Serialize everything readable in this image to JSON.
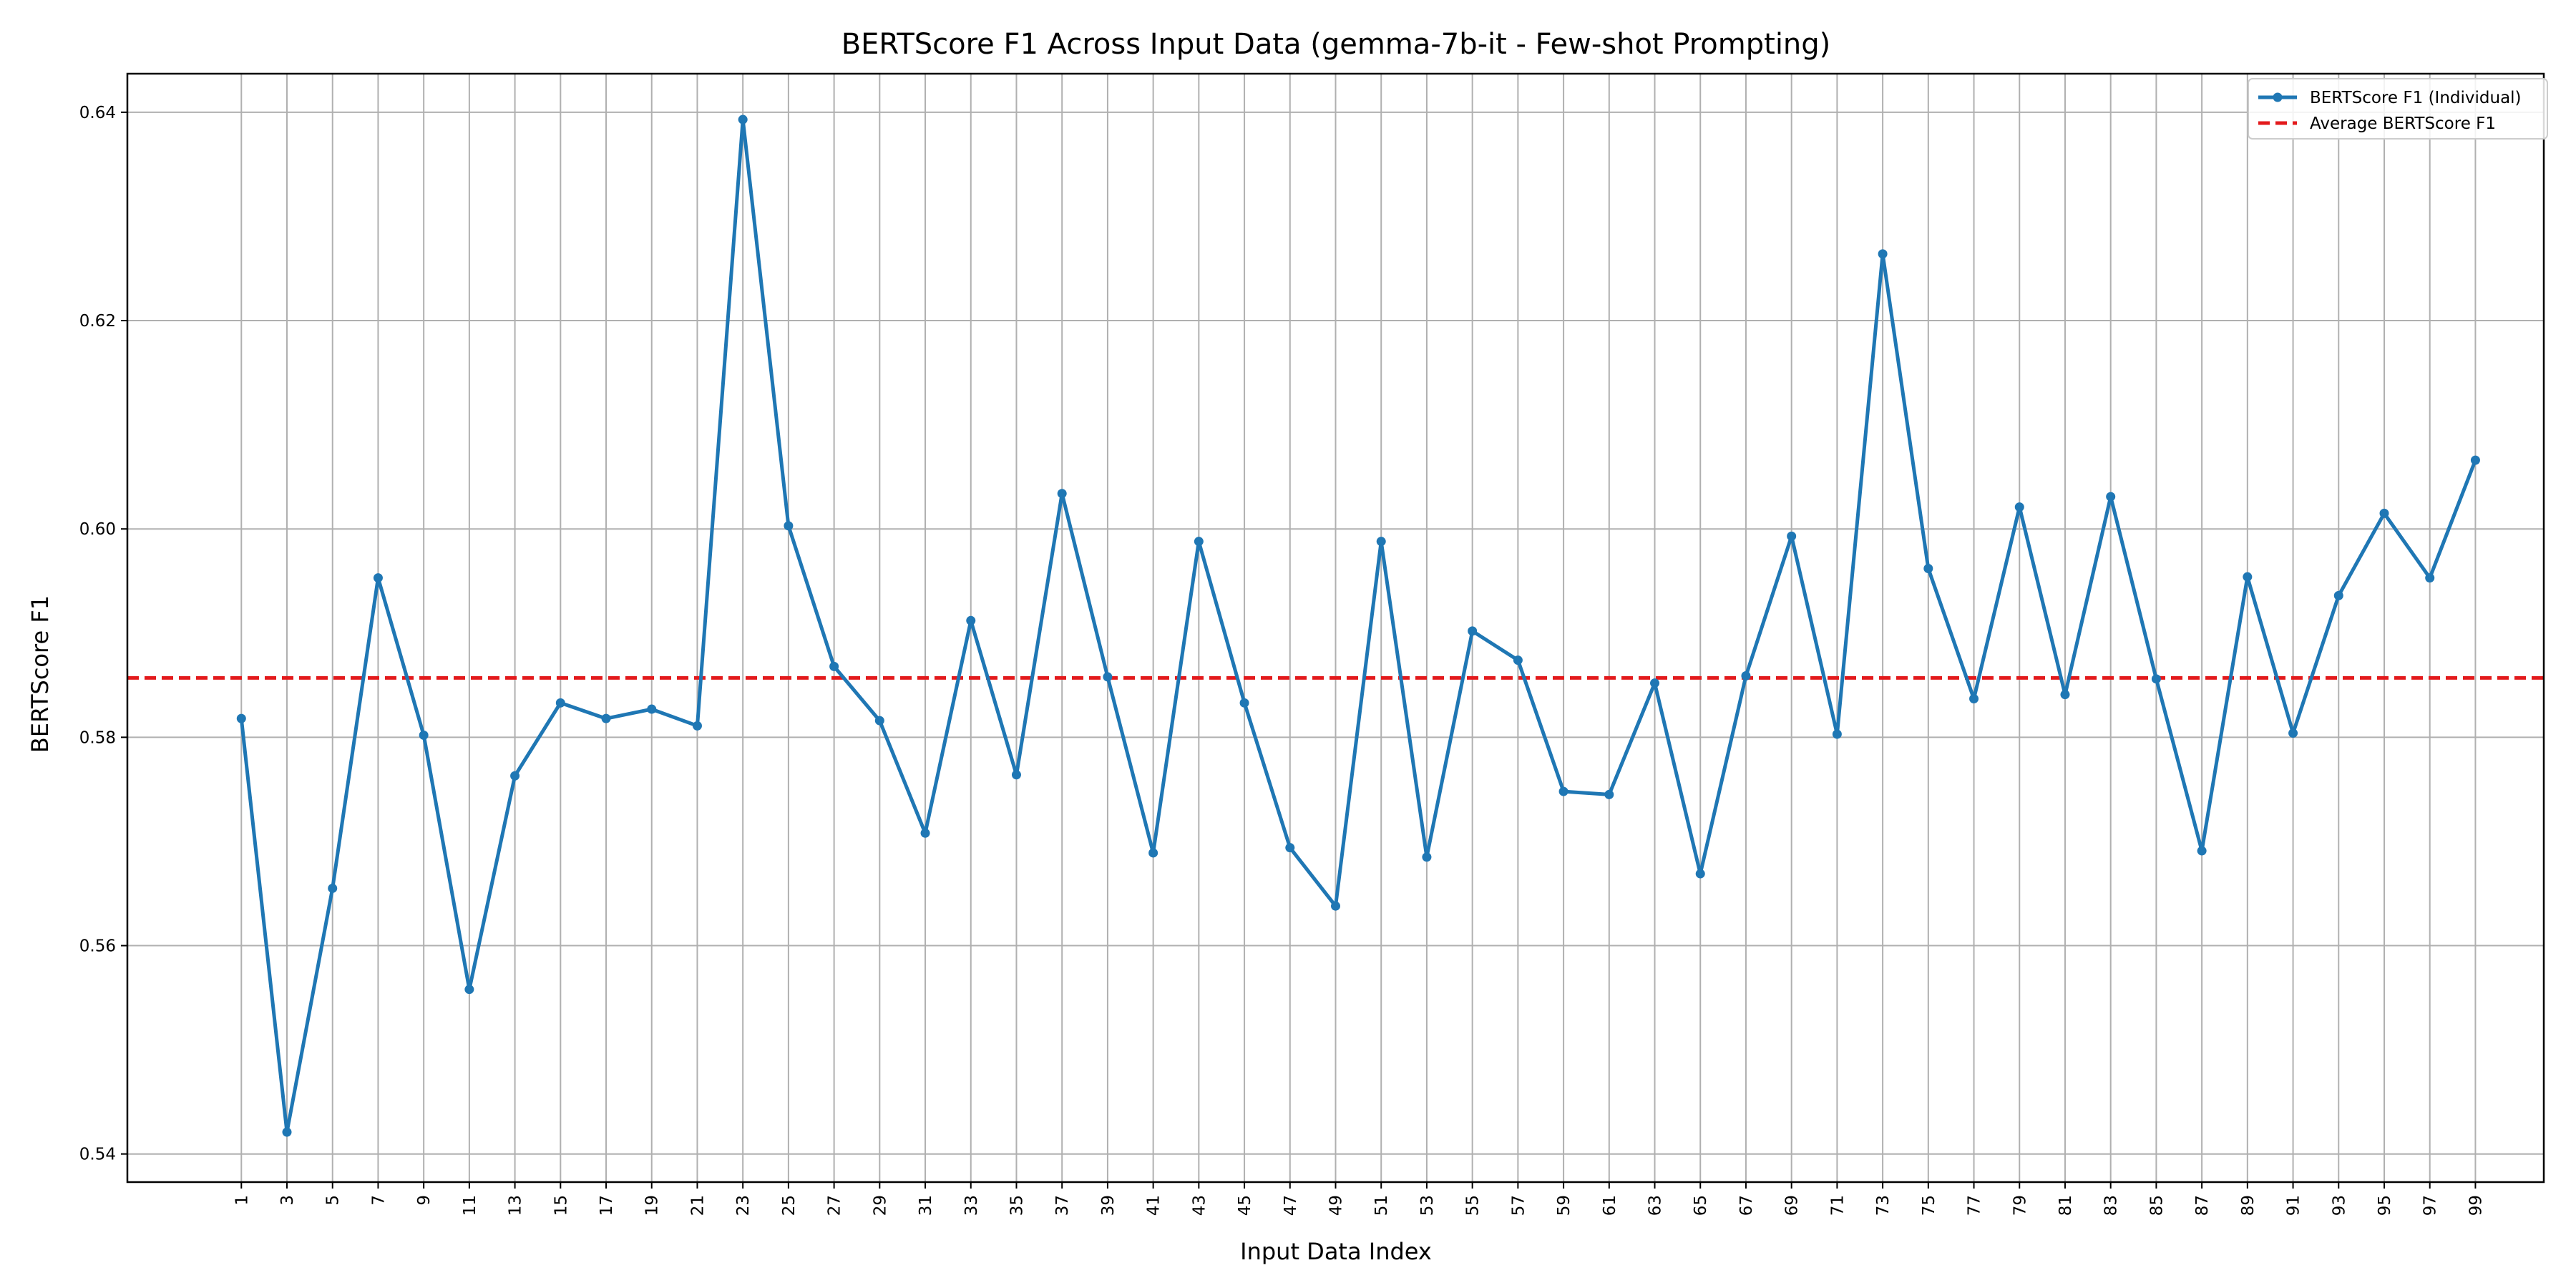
{
  "chart_data": {
    "type": "line",
    "title": "BERTScore F1 Across Input Data (gemma-7b-it - Few-shot Prompting)",
    "xlabel": "Input Data Index",
    "ylabel": "BERTScore F1",
    "x": [
      1,
      3,
      5,
      7,
      9,
      11,
      13,
      15,
      17,
      19,
      21,
      23,
      25,
      27,
      29,
      31,
      33,
      35,
      37,
      39,
      41,
      43,
      45,
      47,
      49,
      51,
      53,
      55,
      57,
      59,
      61,
      63,
      65,
      67,
      69,
      71,
      73,
      75,
      77,
      79,
      81,
      83,
      85,
      87,
      89,
      91,
      93,
      95,
      97,
      99
    ],
    "x_tick_labels": [
      "1",
      "3",
      "5",
      "7",
      "9",
      "11",
      "13",
      "15",
      "17",
      "19",
      "21",
      "23",
      "25",
      "27",
      "29",
      "31",
      "33",
      "35",
      "37",
      "39",
      "41",
      "43",
      "45",
      "47",
      "49",
      "51",
      "53",
      "55",
      "57",
      "59",
      "61",
      "63",
      "65",
      "67",
      "69",
      "71",
      "73",
      "75",
      "77",
      "79",
      "81",
      "83",
      "85",
      "87",
      "89",
      "91",
      "93",
      "95",
      "97",
      "99"
    ],
    "y_ticks": [
      0.54,
      0.56,
      0.58,
      0.6,
      0.62,
      0.64
    ],
    "y_tick_labels": [
      "0.54",
      "0.56",
      "0.58",
      "0.60",
      "0.62",
      "0.64"
    ],
    "ylim": [
      0.5373,
      0.6437
    ],
    "xlim": [
      -4,
      102
    ],
    "grid": true,
    "legend_position": "top-right",
    "series": [
      {
        "name": "BERTScore F1 (Individual)",
        "color": "#1f77b4",
        "style": "solid-line-with-dots",
        "values": [
          0.5818,
          0.5421,
          0.5655,
          0.5953,
          0.5802,
          0.5558,
          0.5763,
          0.5833,
          0.5818,
          0.5827,
          0.5811,
          0.6393,
          0.6003,
          0.5868,
          0.5816,
          0.5708,
          0.5912,
          0.5764,
          0.6034,
          0.5858,
          0.5689,
          0.5988,
          0.5833,
          0.5694,
          0.5638,
          0.5988,
          0.5685,
          0.5902,
          0.5874,
          0.5748,
          0.5745,
          0.5852,
          0.5669,
          0.5859,
          0.5993,
          0.5803,
          0.6264,
          0.5962,
          0.5837,
          0.6021,
          0.5841,
          0.6031,
          0.5856,
          0.5691,
          0.5954,
          0.5804,
          0.5936,
          0.6015,
          0.5953,
          0.6066
        ]
      },
      {
        "name": "Average BERTScore F1",
        "color": "#e31a1c",
        "style": "dashed-line",
        "value": 0.5857
      }
    ]
  }
}
